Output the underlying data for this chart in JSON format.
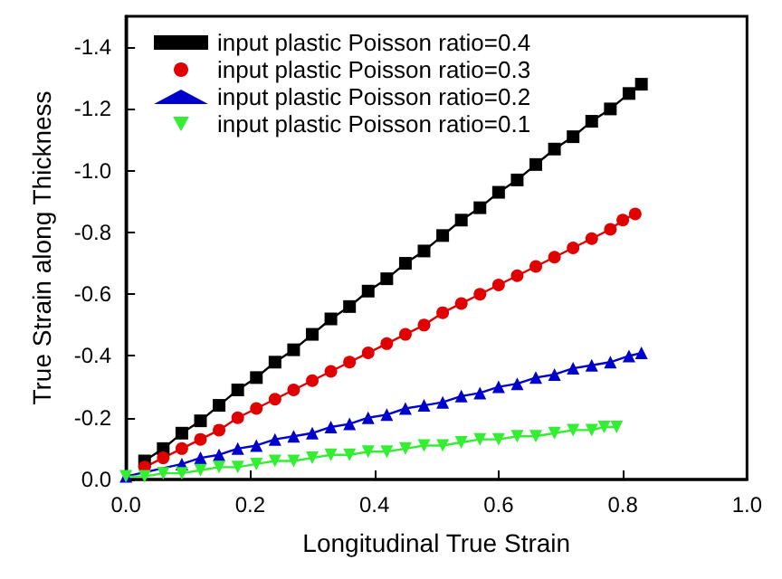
{
  "chart_data": {
    "type": "line",
    "xlabel": "Longitudinal True Strain",
    "ylabel": "True Strain along Thickness",
    "xlim": [
      0,
      1
    ],
    "xticks": [
      {
        "value": 0,
        "label": "0.0"
      },
      0.2,
      0.4,
      0.6,
      0.8,
      {
        "value": 1,
        "label": "1.0"
      }
    ],
    "ylim": [
      0,
      -1.5
    ],
    "yticks": [
      {
        "value": 0,
        "label": "0.0"
      },
      -0.2,
      -0.4,
      -0.6,
      -0.8,
      {
        "value": -1.0,
        "label": "-1.0"
      },
      -1.2,
      -1.4
    ],
    "legend": "top left",
    "grid": false,
    "line_style": "solid",
    "series": [
      {
        "name": "input plastic Poisson ratio=0.4",
        "color": "#000000",
        "marker": "square",
        "x": [
          0.03,
          0.06,
          0.09,
          0.12,
          0.15,
          0.18,
          0.21,
          0.24,
          0.27,
          0.3,
          0.33,
          0.36,
          0.39,
          0.42,
          0.45,
          0.48,
          0.51,
          0.54,
          0.57,
          0.6,
          0.63,
          0.66,
          0.69,
          0.72,
          0.75,
          0.78,
          0.81,
          0.83
        ],
        "values": [
          -0.06,
          -0.1,
          -0.15,
          -0.19,
          -0.24,
          -0.29,
          -0.33,
          -0.38,
          -0.42,
          -0.47,
          -0.52,
          -0.56,
          -0.61,
          -0.65,
          -0.7,
          -0.74,
          -0.79,
          -0.84,
          -0.88,
          -0.93,
          -0.97,
          -1.02,
          -1.07,
          -1.11,
          -1.16,
          -1.2,
          -1.25,
          -1.28
        ]
      },
      {
        "name": "input plastic Poisson ratio=0.3",
        "color": "#e00000",
        "marker": "circle",
        "x": [
          0.03,
          0.06,
          0.09,
          0.12,
          0.15,
          0.18,
          0.21,
          0.24,
          0.27,
          0.3,
          0.33,
          0.36,
          0.39,
          0.42,
          0.45,
          0.48,
          0.51,
          0.54,
          0.57,
          0.6,
          0.63,
          0.66,
          0.69,
          0.72,
          0.75,
          0.78,
          0.8,
          0.82
        ],
        "values": [
          -0.04,
          -0.07,
          -0.1,
          -0.13,
          -0.16,
          -0.2,
          -0.23,
          -0.26,
          -0.29,
          -0.32,
          -0.35,
          -0.38,
          -0.41,
          -0.44,
          -0.47,
          -0.5,
          -0.54,
          -0.57,
          -0.6,
          -0.63,
          -0.66,
          -0.69,
          -0.72,
          -0.75,
          -0.78,
          -0.81,
          -0.84,
          -0.86
        ]
      },
      {
        "name": "input plastic Poisson ratio=0.2",
        "color": "#0000cc",
        "marker": "triangle",
        "x": [
          0,
          0.09,
          0.12,
          0.15,
          0.18,
          0.21,
          0.24,
          0.27,
          0.3,
          0.33,
          0.36,
          0.39,
          0.42,
          0.45,
          0.48,
          0.51,
          0.54,
          0.57,
          0.6,
          0.63,
          0.66,
          0.69,
          0.72,
          0.75,
          0.78,
          0.81,
          0.83
        ],
        "values": [
          -0.01,
          -0.05,
          -0.07,
          -0.08,
          -0.1,
          -0.11,
          -0.13,
          -0.14,
          -0.15,
          -0.17,
          -0.18,
          -0.2,
          -0.21,
          -0.23,
          -0.24,
          -0.25,
          -0.27,
          -0.28,
          -0.3,
          -0.31,
          -0.33,
          -0.34,
          -0.36,
          -0.37,
          -0.38,
          -0.4,
          -0.41
        ]
      },
      {
        "name": "input plastic Poisson ratio=0.1",
        "color": "#33ee33",
        "marker": "triangle-down",
        "x": [
          0,
          0.03,
          0.06,
          0.09,
          0.12,
          0.15,
          0.18,
          0.21,
          0.24,
          0.27,
          0.3,
          0.33,
          0.36,
          0.39,
          0.42,
          0.45,
          0.48,
          0.51,
          0.54,
          0.57,
          0.6,
          0.63,
          0.66,
          0.69,
          0.72,
          0.75,
          0.77,
          0.79
        ],
        "values": [
          -0.01,
          -0.01,
          -0.02,
          -0.02,
          -0.03,
          -0.04,
          -0.04,
          -0.05,
          -0.06,
          -0.06,
          -0.07,
          -0.08,
          -0.08,
          -0.09,
          -0.09,
          -0.1,
          -0.11,
          -0.11,
          -0.12,
          -0.13,
          -0.13,
          -0.14,
          -0.14,
          -0.15,
          -0.16,
          -0.16,
          -0.17,
          -0.17
        ]
      }
    ]
  }
}
